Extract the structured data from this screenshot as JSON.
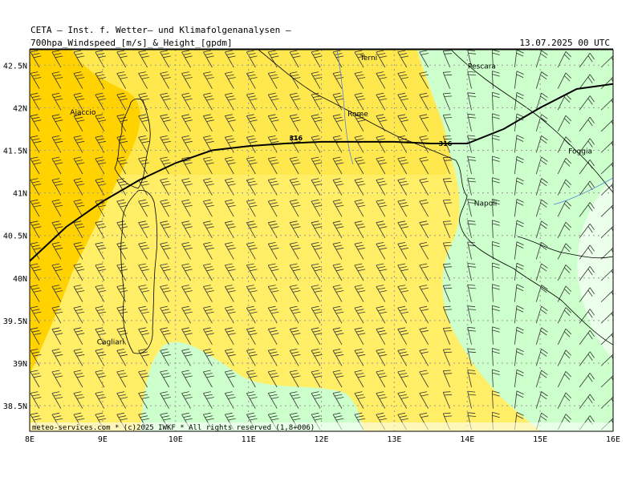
{
  "header": {
    "organization": "CETA — Inst. f. Wetter— und Klimafolgenanalysen —",
    "product": "700hpa_Windspeed_[m/s]_&_Height_[gpdm]",
    "valid_time": "13.07.2025 00 UTC"
  },
  "footer": "meteo-services.com * (c)2025 IWKF * All rights reserved (1,8+006)",
  "axes": {
    "lon_labels": [
      "8E",
      "9E",
      "10E",
      "11E",
      "12E",
      "13E",
      "14E",
      "15E",
      "16E"
    ],
    "lat_labels": [
      "42.5N",
      "42N",
      "41.5N",
      "41N",
      "40.5N",
      "40N",
      "39.5N",
      "39N",
      "38.5N"
    ]
  },
  "cities": [
    {
      "name": "Terni",
      "lon": 12.65,
      "lat": 42.56
    },
    {
      "name": "Pescara",
      "lon": 14.2,
      "lat": 42.46
    },
    {
      "name": "Ajaccio",
      "lon": 8.73,
      "lat": 41.92
    },
    {
      "name": "Rome",
      "lon": 12.5,
      "lat": 41.9
    },
    {
      "name": "Foggia",
      "lon": 15.55,
      "lat": 41.46
    },
    {
      "name": "Napoli",
      "lon": 14.25,
      "lat": 40.85
    },
    {
      "name": "Cagliari",
      "lon": 9.11,
      "lat": 39.22
    }
  ],
  "contour": {
    "label": "316",
    "points": [
      [
        8,
        40.2
      ],
      [
        8.5,
        40.6
      ],
      [
        9,
        40.9
      ],
      [
        9.5,
        41.15
      ],
      [
        10,
        41.35
      ],
      [
        10.5,
        41.5
      ],
      [
        11,
        41.55
      ],
      [
        11.5,
        41.58
      ],
      [
        12,
        41.6
      ],
      [
        12.5,
        41.6
      ],
      [
        13,
        41.6
      ],
      [
        13.5,
        41.58
      ],
      [
        14,
        41.58
      ],
      [
        14.5,
        41.75
      ],
      [
        15,
        42.0
      ],
      [
        15.5,
        42.22
      ],
      [
        16,
        42.28
      ]
    ],
    "label_positions": [
      [
        11.65,
        41.62
      ],
      [
        13.7,
        41.55
      ]
    ]
  },
  "colors": {
    "speed_light_green": "#ccffcc",
    "speed_very_light_green": "#ebffeb",
    "speed_light_yellow": "#ffee66",
    "speed_yellow": "#ffe030",
    "speed_orange": "#ffd200",
    "contour": "#000000",
    "grid": "#9a9a9a"
  }
}
